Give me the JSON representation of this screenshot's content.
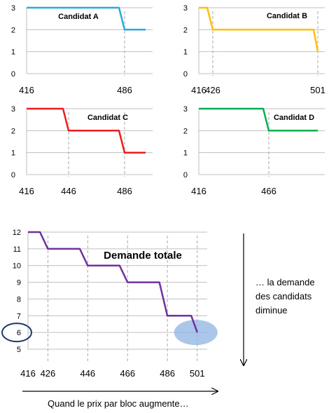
{
  "chart_data": [
    {
      "type": "line",
      "title": "Candidat A",
      "color": "#29a9e0",
      "ylim": [
        0,
        3
      ],
      "y_ticks": [
        0,
        1,
        2,
        3
      ],
      "x_tick_labels": [
        "416",
        "486"
      ],
      "series": [
        {
          "x": [
            416,
            482,
            486,
            501
          ],
          "y": [
            3,
            3,
            2,
            2
          ]
        }
      ]
    },
    {
      "type": "line",
      "title": "Candidat B",
      "color": "#ffc000",
      "ylim": [
        0,
        3
      ],
      "y_ticks": [
        0,
        1,
        2,
        3
      ],
      "x_tick_labels": [
        "416",
        "426",
        "501"
      ],
      "series": [
        {
          "x": [
            416,
            422,
            426,
            498,
            501
          ],
          "y": [
            3,
            3,
            2,
            2,
            1
          ]
        }
      ]
    },
    {
      "type": "line",
      "title": "Candidat C",
      "color": "#ee1c1c",
      "ylim": [
        0,
        3
      ],
      "y_ticks": [
        0,
        1,
        2,
        3
      ],
      "x_tick_labels": [
        "416",
        "446",
        "486"
      ],
      "series": [
        {
          "x": [
            416,
            442,
            446,
            482,
            486,
            501
          ],
          "y": [
            3,
            3,
            2,
            2,
            1,
            1
          ]
        }
      ]
    },
    {
      "type": "line",
      "title": "Candidat D",
      "color": "#00b050",
      "ylim": [
        0,
        3
      ],
      "y_ticks": [
        0,
        1,
        2,
        3
      ],
      "x_tick_labels": [
        "416",
        "466"
      ],
      "series": [
        {
          "x": [
            416,
            462,
            466,
            501
          ],
          "y": [
            3,
            3,
            2,
            2
          ]
        }
      ]
    },
    {
      "type": "line",
      "title": "Demande totale",
      "color": "#7030a0",
      "ylim": [
        5,
        12
      ],
      "y_ticks": [
        5,
        6,
        7,
        8,
        9,
        10,
        11,
        12
      ],
      "x_tick_labels": [
        "416",
        "426",
        "446",
        "466",
        "486",
        "501"
      ],
      "series": [
        {
          "x": [
            416,
            422,
            426,
            442,
            446,
            462,
            466,
            482,
            486,
            492,
            498,
            501
          ],
          "y": [
            12,
            12,
            11,
            11,
            10,
            10,
            9,
            9,
            7,
            7,
            7,
            6
          ]
        }
      ],
      "highlight": {
        "x": 501,
        "y": 6
      },
      "highlight_y_tick": 6
    }
  ],
  "annotations": {
    "right_text": [
      "… la demande",
      "des candidats",
      "diminue"
    ],
    "bottom_text": "Quand le prix par bloc augmente…"
  }
}
